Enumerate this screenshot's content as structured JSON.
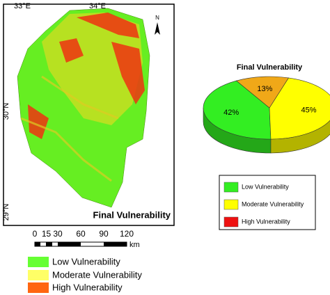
{
  "map": {
    "coordinate_labels": [
      "33°E",
      "34°E",
      "30°N",
      "29°N"
    ],
    "north": "N",
    "title": "Final Vulnerability",
    "scale": {
      "ticks": [
        0,
        15,
        30,
        60,
        90,
        120
      ],
      "unit": "km"
    },
    "legend": [
      "Low Vulnerability",
      "Moderate Vulnerability",
      "High Vulnerability"
    ]
  },
  "chart_data": {
    "type": "pie",
    "title": "Final Vulnerability",
    "categories": [
      "Low Vulnerability",
      "Moderate Vulnerability",
      "High Vulnerability"
    ],
    "values": [
      42,
      45,
      13
    ],
    "value_labels": [
      "42%",
      "45%",
      "13%"
    ],
    "colors": [
      "#33ee22",
      "#ffff00",
      "#f0a818"
    ]
  }
}
